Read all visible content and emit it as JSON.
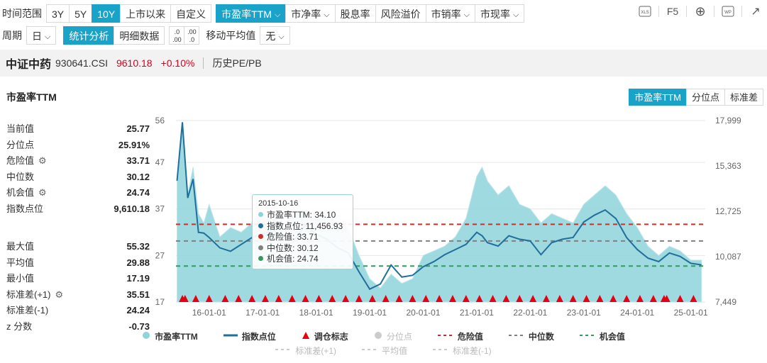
{
  "toolbar": {
    "time_range_label": "时间范围",
    "ranges": [
      "3Y",
      "5Y",
      "10Y",
      "上市以来",
      "自定义"
    ],
    "active_range": "10Y",
    "metrics": [
      "市盈率TTM",
      "市净率",
      "股息率",
      "风险溢价",
      "市销率",
      "市现率"
    ],
    "metrics_chevron": [
      true,
      true,
      false,
      false,
      true,
      true
    ],
    "active_metric": "市盈率TTM",
    "right_icons": [
      "XLS",
      "F5",
      "⊕",
      "WP",
      "↗"
    ]
  },
  "toolbar2": {
    "period_label": "周期",
    "period_value": "日",
    "view_tabs": [
      "统计分析",
      "明细数据"
    ],
    "active_view": "统计分析",
    "decimal_icons": [
      ".0 .00",
      ".00 .0"
    ],
    "ma_label": "移动平均值",
    "ma_value": "无"
  },
  "index_bar": {
    "name": "中证中药",
    "code": "930641.CSI",
    "price": "9610.18",
    "change": "+0.10%",
    "link": "历史PE/PB"
  },
  "section": {
    "title": "市盈率TTM",
    "right_tabs": [
      "市盈率TTM",
      "分位点",
      "标准差"
    ],
    "active_right_tab": "市盈率TTM"
  },
  "stats_top": [
    {
      "k": "当前值",
      "v": "25.77",
      "gear": false
    },
    {
      "k": "分位点",
      "v": "25.91%",
      "gear": false
    },
    {
      "k": "危险值",
      "v": "33.71",
      "gear": true
    },
    {
      "k": "中位数",
      "v": "30.12",
      "gear": false
    },
    {
      "k": "机会值",
      "v": "24.74",
      "gear": true
    },
    {
      "k": "指数点位",
      "v": "9,610.18",
      "gear": false
    }
  ],
  "stats_bottom": [
    {
      "k": "最大值",
      "v": "55.32",
      "gear": false
    },
    {
      "k": "平均值",
      "v": "29.88",
      "gear": false
    },
    {
      "k": "最小值",
      "v": "17.19",
      "gear": false
    },
    {
      "k": "标准差(+1)",
      "v": "35.51",
      "gear": true
    },
    {
      "k": "标准差(-1)",
      "v": "24.24",
      "gear": false
    },
    {
      "k": "z 分数",
      "v": "-0.73",
      "gear": false
    }
  ],
  "tooltip": {
    "date": "2015-10-16",
    "rows": [
      {
        "label": "市盈率TTM: 34.10",
        "color": "#8fd3dc"
      },
      {
        "label": "指数点位: 11,456.93",
        "color": "#1f6f9a"
      },
      {
        "label": "危险值: 33.71",
        "color": "#c9302c"
      },
      {
        "label": "中位数: 30.12",
        "color": "#808080"
      },
      {
        "label": "机会值: 24.74",
        "color": "#2e9e5b"
      }
    ]
  },
  "legend": {
    "row1": [
      "市盈率TTM",
      "指数点位",
      "调仓标志",
      "分位点",
      "危险值",
      "中位数",
      "机会值"
    ],
    "row2": [
      "标准差(+1)",
      "平均值",
      "标准差(-1)"
    ]
  },
  "chart_data": {
    "type": "area",
    "left_axis": {
      "ticks": [
        "56",
        "47",
        "37",
        "27",
        "17"
      ],
      "ylim": [
        17,
        56
      ]
    },
    "right_axis": {
      "ticks": [
        "17,999",
        "15,363",
        "12,725",
        "10,087",
        "7,449"
      ],
      "ylim": [
        7449,
        17999
      ]
    },
    "x_ticks": [
      "16-01-01",
      "17-01-01",
      "18-01-01",
      "19-01-01",
      "20-01-01",
      "21-01-01",
      "22-01-01",
      "23-01-01",
      "24-01-01",
      "25-01-01"
    ],
    "reference_lines": {
      "danger": 33.71,
      "median": 30.12,
      "opportunity": 24.74
    },
    "series": [
      {
        "name": "市盈率TTM",
        "x": [
          2015.4,
          2015.5,
          2015.6,
          2015.7,
          2015.8,
          2015.9,
          2016.0,
          2016.2,
          2016.4,
          2016.6,
          2016.8,
          2017.0,
          2017.2,
          2017.4,
          2017.6,
          2017.8,
          2018.0,
          2018.2,
          2018.4,
          2018.6,
          2018.8,
          2019.0,
          2019.2,
          2019.4,
          2019.6,
          2019.8,
          2020.0,
          2020.2,
          2020.4,
          2020.6,
          2020.8,
          2021.0,
          2021.1,
          2021.2,
          2021.4,
          2021.6,
          2021.8,
          2022.0,
          2022.2,
          2022.4,
          2022.6,
          2022.8,
          2023.0,
          2023.2,
          2023.4,
          2023.6,
          2023.8,
          2024.0,
          2024.2,
          2024.4,
          2024.6,
          2024.8,
          2025.0,
          2025.2
        ],
        "values": [
          43,
          55,
          40,
          46,
          36,
          34,
          38,
          31,
          33,
          32,
          34,
          36,
          35,
          34,
          36,
          37,
          35,
          36,
          34,
          33,
          27,
          22,
          20,
          23,
          21,
          22,
          27,
          28,
          29,
          31,
          35,
          44,
          46,
          43,
          40,
          42,
          38,
          37,
          34,
          36,
          35,
          34,
          38,
          40,
          42,
          40,
          36,
          33,
          29,
          27,
          29,
          28,
          26,
          26
        ]
      },
      {
        "name": "指数点位",
        "x": [
          2015.4,
          2015.5,
          2015.6,
          2015.7,
          2015.8,
          2015.9,
          2016.0,
          2016.2,
          2016.4,
          2016.6,
          2016.8,
          2017.0,
          2017.2,
          2017.4,
          2017.6,
          2017.8,
          2018.0,
          2018.2,
          2018.4,
          2018.6,
          2018.8,
          2019.0,
          2019.2,
          2019.4,
          2019.6,
          2019.8,
          2020.0,
          2020.2,
          2020.4,
          2020.6,
          2020.8,
          2021.0,
          2021.1,
          2021.2,
          2021.4,
          2021.6,
          2021.8,
          2022.0,
          2022.2,
          2022.4,
          2022.6,
          2022.8,
          2023.0,
          2023.2,
          2023.4,
          2023.6,
          2023.8,
          2024.0,
          2024.2,
          2024.4,
          2024.6,
          2024.8,
          2025.0,
          2025.2
        ],
        "values": [
          14500,
          17900,
          13500,
          14600,
          11500,
          11457,
          11200,
          10600,
          10400,
          10800,
          11200,
          11400,
          11600,
          11300,
          11100,
          11900,
          11400,
          11100,
          10600,
          10300,
          9200,
          8200,
          8500,
          9600,
          8900,
          9000,
          9500,
          9800,
          10200,
          10500,
          10800,
          11500,
          11300,
          10900,
          10700,
          11300,
          11100,
          11000,
          10200,
          10900,
          11100,
          11200,
          12100,
          12500,
          12800,
          12300,
          11200,
          10500,
          10000,
          9800,
          10300,
          10100,
          9700,
          9610
        ]
      }
    ],
    "rebalance_markers": [
      2015.5,
      2015.55,
      2015.75,
      2016.0,
      2016.3,
      2016.55,
      2016.8,
      2017.05,
      2017.3,
      2017.55,
      2017.8,
      2018.05,
      2018.3,
      2018.55,
      2018.8,
      2019.05,
      2019.3,
      2019.55,
      2019.8,
      2020.05,
      2020.3,
      2020.55,
      2020.8,
      2021.05,
      2021.3,
      2021.55,
      2021.8,
      2022.05,
      2022.3,
      2022.55,
      2022.8,
      2023.05,
      2023.3,
      2023.55,
      2023.8,
      2024.05,
      2024.3,
      2024.5,
      2024.55,
      2024.8,
      2025.05
    ]
  },
  "colors": {
    "accent": "#1aa3c9",
    "area": "#8fd3dc",
    "index_line": "#1f6f9a",
    "danger": "#c9302c",
    "median": "#808080",
    "opportunity": "#2e9e5b",
    "marker": "#e60012"
  }
}
